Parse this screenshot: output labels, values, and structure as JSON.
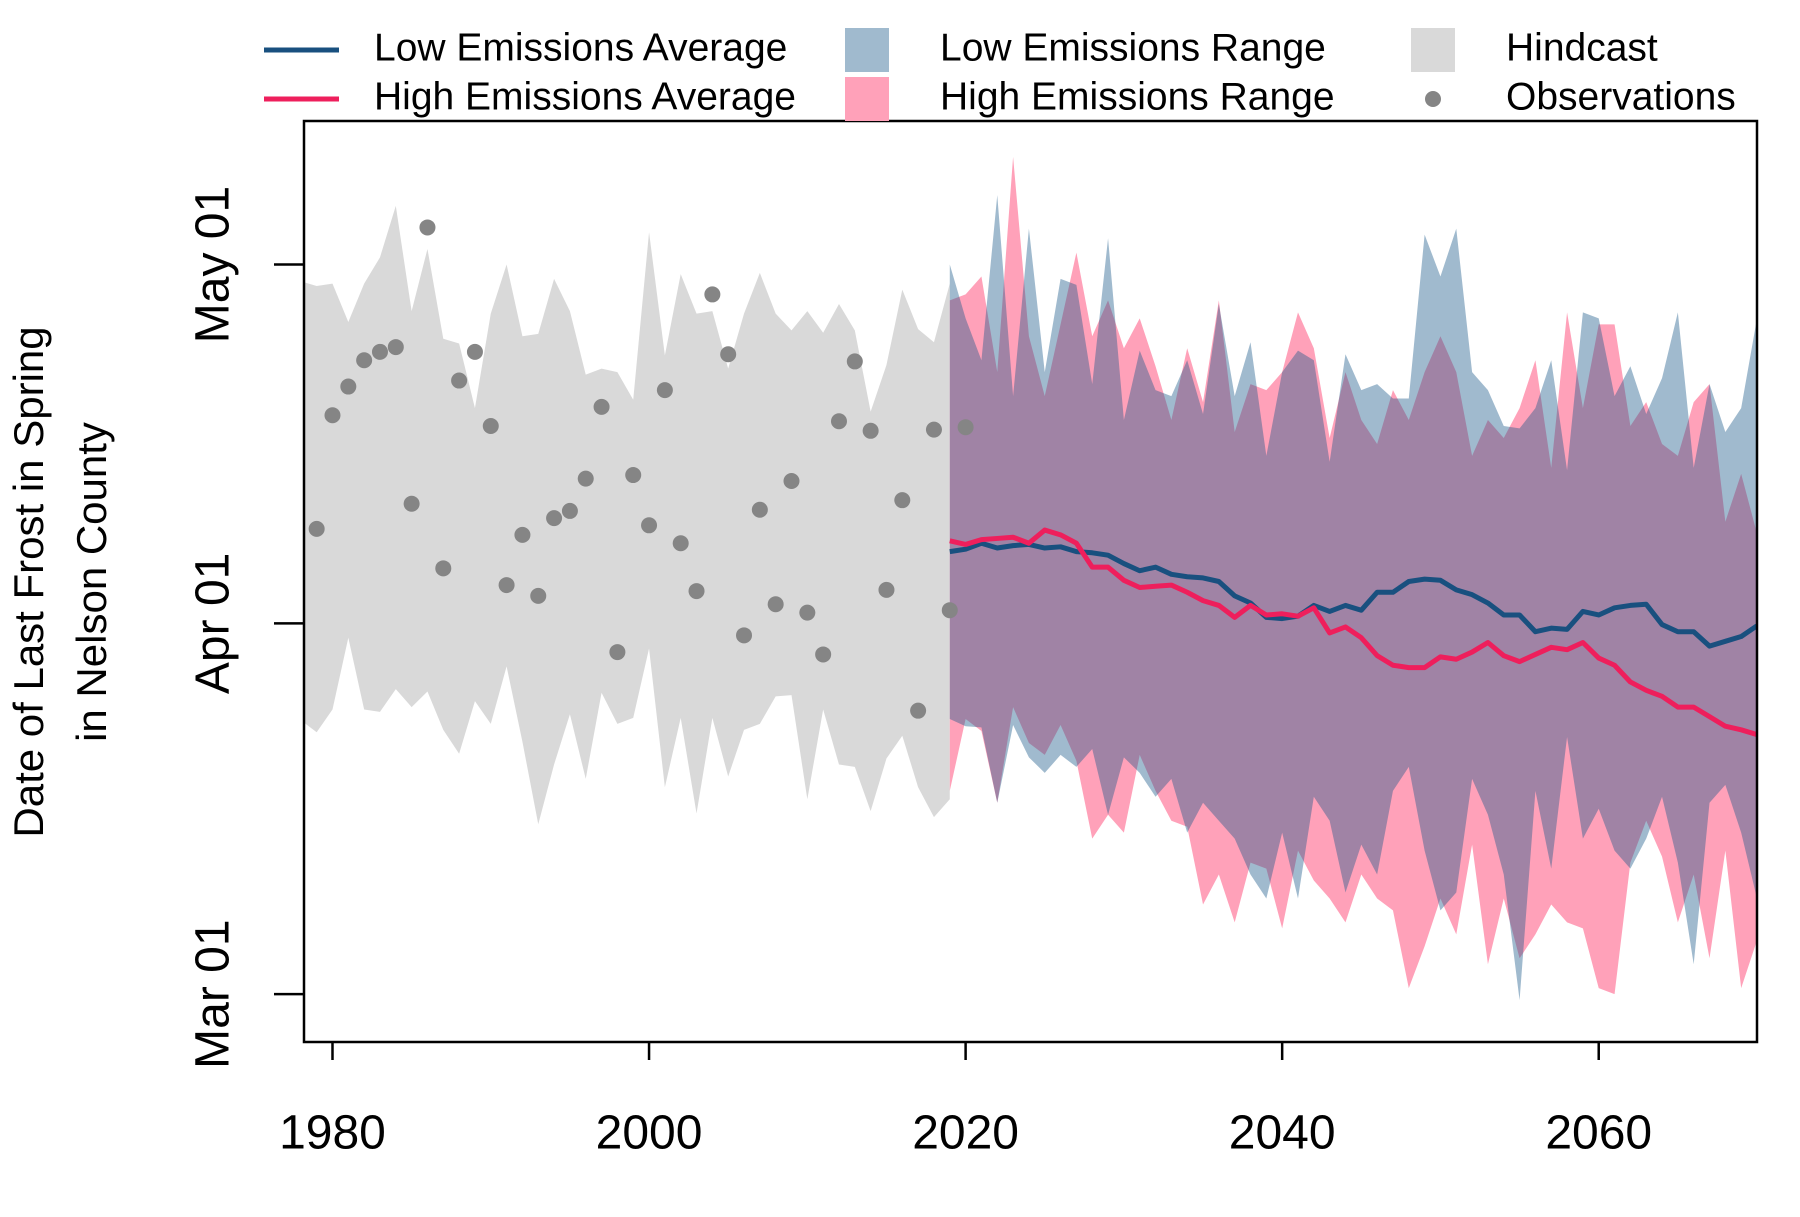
{
  "chart_data": {
    "type": "line",
    "ylabel": [
      "Date of Last Frost in Spring",
      "in Nelson County"
    ],
    "xlim": [
      1978.2,
      2070
    ],
    "xticks": [
      1980,
      2000,
      2020,
      2040,
      2060
    ],
    "ylim": [
      56,
      133
    ],
    "yticks": [
      {
        "value": 60,
        "label": "Mar 01"
      },
      {
        "value": 91,
        "label": "Apr 01"
      },
      {
        "value": 121,
        "label": "May 01"
      }
    ],
    "legend": "top",
    "series": [
      {
        "name": "Low Emissions Average",
        "type": "line",
        "color": "#19507f",
        "x": [
          2019,
          2020,
          2021,
          2022,
          2023,
          2024,
          2025,
          2026,
          2027,
          2028,
          2029,
          2030,
          2031,
          2032,
          2033,
          2034,
          2035,
          2036,
          2037,
          2038,
          2039,
          2040,
          2041,
          2042,
          2043,
          2044,
          2045,
          2046,
          2047,
          2048,
          2049,
          2050,
          2051,
          2052,
          2053,
          2054,
          2055,
          2056,
          2057,
          2058,
          2059,
          2060,
          2061,
          2062,
          2063,
          2064,
          2065,
          2066,
          2067,
          2068,
          2069,
          2070
        ],
        "values": [
          97.0,
          97.2,
          97.7,
          97.3,
          97.5,
          97.6,
          97.3,
          97.4,
          97.0,
          96.9,
          96.7,
          96.0,
          95.4,
          95.7,
          95.1,
          94.9,
          94.8,
          94.5,
          93.3,
          92.7,
          91.5,
          91.4,
          91.6,
          92.5,
          92.0,
          92.5,
          92.1,
          93.6,
          93.6,
          94.5,
          94.7,
          94.6,
          93.8,
          93.4,
          92.7,
          91.7,
          91.7,
          90.3,
          90.6,
          90.5,
          92.0,
          91.7,
          92.3,
          92.5,
          92.6,
          90.9,
          90.3,
          90.3,
          89.1,
          89.5,
          89.9,
          90.8
        ]
      },
      {
        "name": "High Emissions Average",
        "type": "line",
        "color": "#ee1f5c",
        "x": [
          2019,
          2020,
          2021,
          2022,
          2023,
          2024,
          2025,
          2026,
          2027,
          2028,
          2029,
          2030,
          2031,
          2032,
          2033,
          2034,
          2035,
          2036,
          2037,
          2038,
          2039,
          2040,
          2041,
          2042,
          2043,
          2044,
          2045,
          2046,
          2047,
          2048,
          2049,
          2050,
          2051,
          2052,
          2053,
          2054,
          2055,
          2056,
          2057,
          2058,
          2059,
          2060,
          2061,
          2062,
          2063,
          2064,
          2065,
          2066,
          2067,
          2068,
          2069,
          2070
        ],
        "values": [
          97.9,
          97.6,
          98.0,
          98.1,
          98.2,
          97.7,
          98.8,
          98.4,
          97.7,
          95.7,
          95.7,
          94.6,
          94.0,
          94.1,
          94.2,
          93.6,
          92.9,
          92.5,
          91.5,
          92.5,
          91.7,
          91.8,
          91.6,
          92.3,
          90.2,
          90.7,
          89.8,
          88.3,
          87.5,
          87.3,
          87.3,
          88.2,
          88.0,
          88.6,
          89.4,
          88.3,
          87.8,
          88.4,
          89.0,
          88.8,
          89.4,
          88.1,
          87.5,
          86.1,
          85.4,
          84.9,
          84.0,
          84.0,
          83.2,
          82.4,
          82.1,
          81.7
        ]
      },
      {
        "name": "Low Emissions Range",
        "type": "band",
        "color": "#1a5989",
        "opacity": 0.415,
        "x": [
          2019,
          2020,
          2021,
          2022,
          2023,
          2024,
          2025,
          2026,
          2027,
          2028,
          2029,
          2030,
          2031,
          2032,
          2033,
          2034,
          2035,
          2036,
          2037,
          2038,
          2039,
          2040,
          2041,
          2042,
          2043,
          2044,
          2045,
          2046,
          2047,
          2048,
          2049,
          2050,
          2051,
          2052,
          2053,
          2054,
          2055,
          2056,
          2057,
          2058,
          2059,
          2060,
          2061,
          2062,
          2063,
          2064,
          2065,
          2066,
          2067,
          2068,
          2069,
          2070
        ],
        "upper": [
          121.0,
          116.5,
          113.0,
          126.8,
          110.0,
          124.0,
          112.0,
          119.8,
          119.3,
          111.0,
          123.2,
          108.0,
          113.8,
          110.5,
          110.0,
          113.0,
          108.5,
          117.7,
          110.0,
          114.5,
          105.0,
          112.0,
          113.8,
          113.0,
          104.5,
          113.5,
          110.5,
          111.0,
          109.8,
          109.8,
          123.5,
          120.0,
          124.0,
          112.0,
          110.5,
          107.5,
          107.3,
          109.0,
          113.0,
          103.8,
          117.0,
          116.5,
          110.0,
          112.5,
          108.5,
          111.5,
          117.0,
          104.0,
          111.0,
          107.0,
          109.0,
          116.5
        ],
        "lower": [
          83.0,
          82.4,
          82.3,
          76.0,
          82.5,
          79.8,
          78.5,
          80.0,
          79.0,
          80.5,
          75.0,
          79.8,
          78.5,
          76.5,
          78.0,
          73.5,
          76.0,
          74.5,
          73.0,
          70.0,
          68.0,
          73.5,
          68.0,
          76.5,
          74.5,
          68.5,
          72.5,
          70.0,
          77.0,
          79.0,
          72.0,
          67.0,
          68.5,
          78.0,
          75.0,
          70.0,
          59.5,
          77.0,
          70.5,
          81.5,
          73.0,
          75.5,
          72.0,
          70.5,
          73.0,
          76.5,
          71.0,
          62.5,
          76.0,
          77.5,
          73.5,
          68.0
        ]
      },
      {
        "name": "High Emissions Range",
        "type": "band",
        "color": "#ffa1b9",
        "opacity": 1,
        "x": [
          2019,
          2020,
          2021,
          2022,
          2023,
          2024,
          2025,
          2026,
          2027,
          2028,
          2029,
          2030,
          2031,
          2032,
          2033,
          2034,
          2035,
          2036,
          2037,
          2038,
          2039,
          2040,
          2041,
          2042,
          2043,
          2044,
          2045,
          2046,
          2047,
          2048,
          2049,
          2050,
          2051,
          2052,
          2053,
          2054,
          2055,
          2056,
          2057,
          2058,
          2059,
          2060,
          2061,
          2062,
          2063,
          2064,
          2065,
          2066,
          2067,
          2068,
          2069,
          2070
        ],
        "upper": [
          118.0,
          118.5,
          120.0,
          112.0,
          130.0,
          115.0,
          110.0,
          116.0,
          122.0,
          115.0,
          118.0,
          114.0,
          116.5,
          112.5,
          108.0,
          114.0,
          109.5,
          118.0,
          107.0,
          111.0,
          110.5,
          112.0,
          117.0,
          114.0,
          106.5,
          112.0,
          108.0,
          106.0,
          110.5,
          108.0,
          112.0,
          115.0,
          112.0,
          105.0,
          108.0,
          106.5,
          109.0,
          113.0,
          104.0,
          117.0,
          109.0,
          116.0,
          116.0,
          107.5,
          109.5,
          106.0,
          105.0,
          109.5,
          111.0,
          99.5,
          103.5,
          98.5
        ],
        "lower": [
          77.0,
          83.0,
          82.0,
          76.0,
          84.0,
          81.0,
          80.0,
          82.5,
          79.5,
          73.0,
          75.0,
          73.5,
          80.0,
          77.0,
          74.5,
          74.0,
          67.5,
          70.0,
          66.0,
          71.0,
          70.5,
          65.5,
          72.0,
          69.5,
          68.0,
          66.0,
          70.0,
          68.0,
          67.0,
          60.5,
          64.0,
          68.0,
          65.0,
          72.5,
          62.5,
          68.0,
          63.0,
          65.0,
          67.5,
          66.0,
          65.5,
          60.5,
          60.0,
          71.0,
          74.5,
          71.5,
          66.0,
          70.0,
          63.0,
          72.0,
          60.5,
          64.5
        ]
      },
      {
        "name": "Hindcast",
        "type": "band",
        "color": "#d9d9d9",
        "opacity": 1,
        "x": [
          1978,
          1979,
          1980,
          1981,
          1982,
          1983,
          1984,
          1985,
          1986,
          1987,
          1988,
          1989,
          1990,
          1991,
          1992,
          1993,
          1994,
          1995,
          1996,
          1997,
          1998,
          1999,
          2000,
          2001,
          2002,
          2003,
          2004,
          2005,
          2006,
          2007,
          2008,
          2009,
          2010,
          2011,
          2012,
          2013,
          2014,
          2015,
          2016,
          2017,
          2018,
          2019
        ],
        "upper": [
          119.6,
          119.2,
          119.4,
          116.2,
          119.4,
          121.6,
          125.9,
          117.1,
          122.3,
          114.8,
          114.4,
          109.0,
          116.9,
          121.0,
          115.0,
          115.2,
          119.8,
          117.1,
          111.8,
          112.3,
          112.0,
          109.7,
          123.7,
          113.4,
          120.2,
          116.9,
          117.1,
          112.3,
          116.9,
          120.3,
          116.9,
          115.5,
          117.1,
          115.3,
          117.7,
          115.5,
          108.7,
          112.6,
          118.9,
          115.6,
          114.5,
          119.4
        ],
        "lower": [
          82.9,
          81.9,
          83.8,
          89.8,
          83.8,
          83.6,
          85.5,
          84.0,
          85.3,
          82.1,
          80.1,
          84.5,
          82.6,
          87.4,
          81.1,
          74.2,
          79.2,
          83.4,
          78.0,
          85.2,
          82.6,
          83.1,
          88.9,
          77.3,
          83.1,
          75.1,
          83.1,
          78.2,
          82.1,
          82.6,
          84.9,
          85.0,
          76.3,
          83.8,
          79.2,
          79.0,
          75.3,
          79.7,
          81.6,
          77.3,
          74.8,
          76.3
        ]
      },
      {
        "name": "Observations",
        "type": "scatter",
        "color": "#858585",
        "x": [
          1979,
          1980,
          1981,
          1982,
          1983,
          1984,
          1985,
          1986,
          1987,
          1988,
          1989,
          1990,
          1991,
          1992,
          1993,
          1994,
          1995,
          1996,
          1997,
          1998,
          1999,
          2000,
          2001,
          2002,
          2003,
          2004,
          2005,
          2006,
          2007,
          2008,
          2009,
          2010,
          2011,
          2012,
          2013,
          2014,
          2015,
          2016,
          2017,
          2018,
          2019,
          2020
        ],
        "values": [
          98.9,
          108.4,
          110.8,
          113.0,
          113.7,
          114.1,
          101.0,
          124.1,
          95.6,
          111.3,
          113.7,
          107.5,
          94.2,
          98.4,
          93.3,
          99.8,
          100.4,
          103.1,
          109.1,
          88.6,
          103.4,
          99.2,
          110.5,
          97.7,
          93.7,
          118.5,
          113.5,
          90.0,
          100.5,
          92.6,
          102.9,
          91.9,
          88.4,
          107.9,
          112.9,
          107.1,
          93.8,
          101.3,
          83.7,
          107.2,
          92.1,
          107.4
        ]
      }
    ]
  }
}
